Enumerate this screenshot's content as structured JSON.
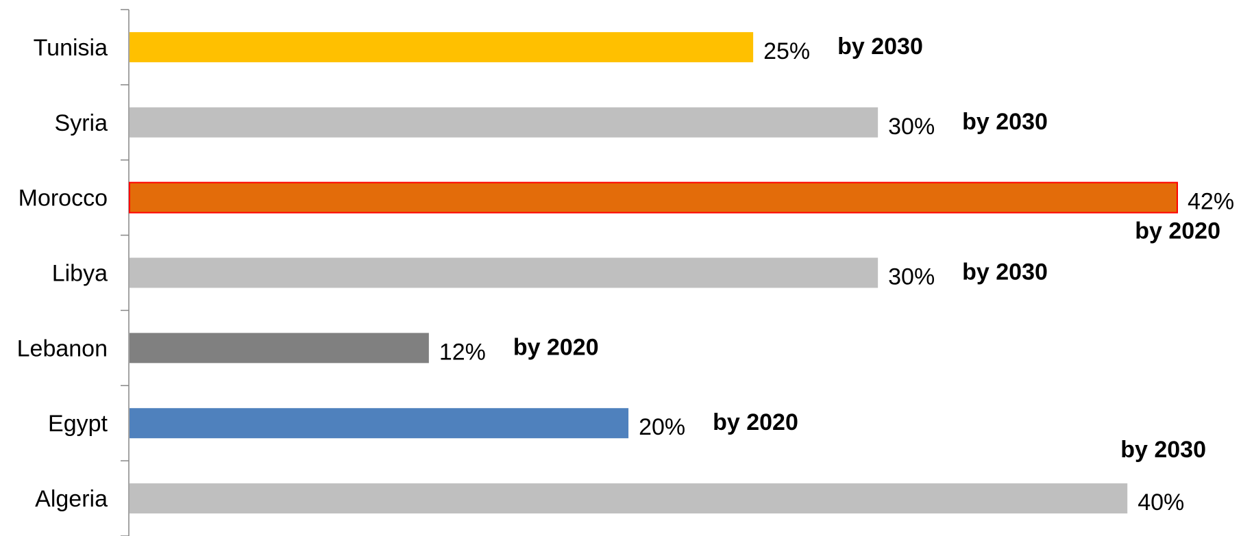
{
  "chart_data": {
    "type": "bar",
    "orientation": "horizontal",
    "categories": [
      "Tunisia",
      "Syria",
      "Morocco",
      "Libya",
      "Lebanon",
      "Egypt",
      "Algeria"
    ],
    "values": [
      25,
      30,
      42,
      30,
      12,
      20,
      40
    ],
    "value_labels": [
      "25%",
      "30%",
      "42%",
      "30%",
      "12%",
      "20%",
      "40%"
    ],
    "annotations": [
      "by 2030",
      "by 2030",
      "by 2020",
      "by 2030",
      "by 2020",
      "by 2020",
      "by 2030"
    ],
    "colors": [
      "#FFC000",
      "#BFBFBF",
      "#E36C0A",
      "#BFBFBF",
      "#808080",
      "#4F81BD",
      "#BFBFBF"
    ],
    "highlight_border": [
      "",
      "",
      "#FF0000",
      "",
      "",
      "",
      ""
    ],
    "xlim": [
      0,
      42
    ],
    "grid": false,
    "legend": "none",
    "title": "",
    "xlabel": "",
    "ylabel": ""
  }
}
